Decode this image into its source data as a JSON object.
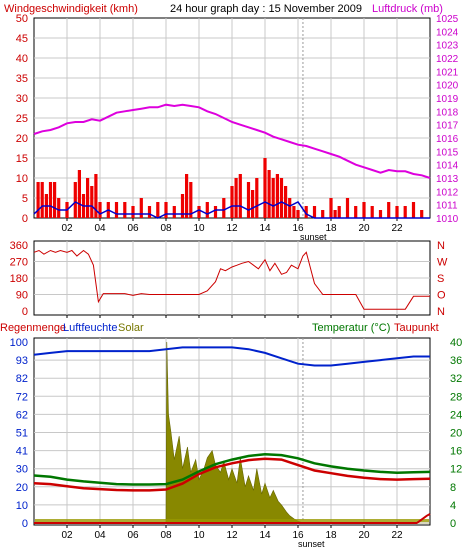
{
  "header": {
    "wind_label": "Windgeschwindigkeit (kmh)",
    "title": "24 hour graph day : 15 November 2009",
    "pressure_label": "Luftdruck (mb)"
  },
  "lower_header": {
    "rain_label": "Regenmenge",
    "humidity_label": "Luftfeuchte",
    "solar_label": "Solar",
    "temp_label": "Temperatur (°C)",
    "dew_label": "Taupunkt"
  },
  "x_ticks": [
    "02",
    "04",
    "06",
    "08",
    "10",
    "12",
    "14",
    "16",
    "18",
    "20",
    "22"
  ],
  "sunset_label": "sunset",
  "colors": {
    "wind": "#cc0000",
    "pressure": "#dd00dd",
    "gust": "#ee0000",
    "wind_avg": "#0000cc",
    "direction": "#cc0000",
    "humidity": "#0022cc",
    "solar": "#888800",
    "temperature": "#007700",
    "dewpoint": "#cc0000",
    "rain": "#cc0000",
    "grid": "#c8c8c8"
  },
  "chart_data": [
    {
      "type": "bar",
      "name": "wind_pressure",
      "title": "24 hour graph day : 15 November 2009",
      "ylabel_left": "Windgeschwindigkeit (kmh)",
      "ylabel_right": "Luftdruck (mb)",
      "ylim_left": [
        0,
        50
      ],
      "ylim_right": [
        1010,
        1025
      ],
      "yticks_left": [
        "0",
        "5",
        "10",
        "15",
        "20",
        "25",
        "30",
        "35",
        "40",
        "45",
        "50"
      ],
      "yticks_right": [
        "1010",
        "1011",
        "1012",
        "1013",
        "1014",
        "1015",
        "1016",
        "1017",
        "1018",
        "1019",
        "1020",
        "1021",
        "1022",
        "1023",
        "1024",
        "1025"
      ],
      "xlim_hours": [
        0,
        24
      ],
      "sunset_hour": 16.3,
      "series": [
        {
          "name": "Luftdruck",
          "kind": "line",
          "axis": "right",
          "x": [
            0,
            0.5,
            1,
            1.5,
            2,
            2.5,
            3,
            3.5,
            4,
            4.5,
            5,
            5.5,
            6,
            6.5,
            7,
            7.5,
            8,
            8.5,
            9,
            9.5,
            10,
            10.5,
            11,
            11.5,
            12,
            12.5,
            13,
            13.5,
            14,
            14.5,
            15,
            15.5,
            16,
            16.5,
            17,
            17.5,
            18,
            18.5,
            19,
            19.5,
            20,
            20.5,
            21,
            21.5,
            22,
            22.5,
            23,
            23.5,
            24
          ],
          "y": [
            1016.3,
            1016.5,
            1016.6,
            1016.8,
            1017.1,
            1017.2,
            1017.2,
            1017.4,
            1017.3,
            1017.6,
            1017.9,
            1018.0,
            1018.1,
            1018.2,
            1018.3,
            1018.3,
            1018.5,
            1018.4,
            1018.5,
            1018.4,
            1018.3,
            1018.0,
            1017.8,
            1017.5,
            1017.2,
            1017.0,
            1016.8,
            1016.6,
            1016.4,
            1016.1,
            1015.9,
            1015.7,
            1015.5,
            1015.4,
            1015.2,
            1015.0,
            1014.8,
            1014.6,
            1014.3,
            1014.0,
            1013.8,
            1013.6,
            1013.4,
            1013.6,
            1013.5,
            1013.5,
            1013.3,
            1013.2,
            1013.0
          ]
        },
        {
          "name": "Böen",
          "kind": "bar",
          "axis": "left",
          "x": [
            0.25,
            0.5,
            0.75,
            1.0,
            1.25,
            1.5,
            2.0,
            2.5,
            2.75,
            3.0,
            3.25,
            3.5,
            3.75,
            4.0,
            4.5,
            5.0,
            5.5,
            6.0,
            6.5,
            7.0,
            7.5,
            8.0,
            8.5,
            9.0,
            9.25,
            9.5,
            10.0,
            10.5,
            11.0,
            11.5,
            12.0,
            12.25,
            12.5,
            13.0,
            13.25,
            13.5,
            14.0,
            14.25,
            14.5,
            14.75,
            15.0,
            15.25,
            15.5,
            15.75,
            16.0,
            16.5,
            17.0,
            17.5,
            18.0,
            18.25,
            18.5,
            19.0,
            19.5,
            20.0,
            20.5,
            21.0,
            21.5,
            22.0,
            22.5,
            23.0,
            23.5
          ],
          "y": [
            9,
            9,
            6,
            9,
            9,
            5,
            4,
            9,
            12,
            6,
            10,
            8,
            11,
            4,
            4,
            4,
            4,
            3,
            5,
            3,
            4,
            4,
            3,
            6,
            11,
            9,
            3,
            4,
            3,
            5,
            8,
            10,
            11,
            9,
            7,
            10,
            15,
            12,
            10,
            11,
            10,
            8,
            5,
            3,
            2,
            3,
            3,
            2,
            5,
            2,
            3,
            5,
            3,
            4,
            3,
            2,
            4,
            3,
            3,
            4,
            2
          ]
        },
        {
          "name": "Windgeschwindigkeit",
          "kind": "line",
          "axis": "left",
          "x": [
            0,
            0.5,
            1,
            1.5,
            2,
            2.5,
            3,
            3.5,
            4,
            4.5,
            5,
            5.5,
            6,
            6.5,
            7,
            7.5,
            8,
            8.5,
            9,
            9.5,
            10,
            10.5,
            11,
            11.5,
            12,
            12.5,
            13,
            13.5,
            14,
            14.5,
            15,
            15.5,
            16,
            16.5,
            17,
            17.5,
            18,
            18.5,
            19,
            19.5,
            20,
            20.5,
            21,
            21.5,
            22,
            22.5,
            23,
            23.5,
            24
          ],
          "y": [
            1,
            3,
            3,
            2,
            2,
            4,
            3,
            3,
            1,
            2,
            1,
            1,
            1,
            1,
            1,
            0,
            1,
            1,
            1,
            1,
            2,
            1,
            2,
            2,
            3,
            3,
            2,
            3,
            4,
            3,
            4,
            3,
            4,
            1,
            0,
            0,
            0,
            0,
            0,
            0,
            0,
            0,
            0,
            0,
            0,
            0,
            0,
            0,
            0
          ]
        }
      ]
    },
    {
      "type": "line",
      "name": "wind_direction",
      "ylim": [
        0,
        360
      ],
      "yticks_left": [
        "0",
        "90",
        "180",
        "270",
        "360"
      ],
      "yticks_right": [
        "N",
        "O",
        "S",
        "W",
        "N"
      ],
      "xlim_hours": [
        0,
        24
      ],
      "series": [
        {
          "name": "Windrichtung",
          "x": [
            0,
            0.3,
            0.6,
            1,
            1.3,
            1.6,
            2,
            2.3,
            2.6,
            3,
            3.3,
            3.6,
            3.9,
            4.2,
            4.5,
            5,
            5.5,
            6,
            6.5,
            7,
            7.5,
            8,
            8.5,
            9,
            9.5,
            10,
            10.5,
            11,
            11.3,
            11.6,
            12,
            12.3,
            12.6,
            13,
            13.3,
            13.6,
            14,
            14.3,
            14.6,
            15,
            15.3,
            15.6,
            16,
            16.3,
            16.5,
            17,
            17.5,
            18,
            18.5,
            19,
            19.5,
            20,
            21,
            22,
            22.5,
            23,
            24
          ],
          "y": [
            320,
            330,
            310,
            330,
            320,
            330,
            320,
            330,
            300,
            330,
            310,
            250,
            50,
            95,
            95,
            95,
            95,
            85,
            95,
            90,
            90,
            90,
            90,
            90,
            90,
            90,
            110,
            160,
            230,
            220,
            240,
            250,
            260,
            270,
            250,
            230,
            280,
            220,
            260,
            200,
            210,
            250,
            230,
            300,
            320,
            150,
            90,
            90,
            90,
            90,
            90,
            10,
            10,
            10,
            10,
            80,
            80
          ]
        }
      ]
    },
    {
      "type": "area",
      "name": "temperature_humidity",
      "ylabel_left": "Luftfeuchte",
      "ylabel_right": "Temperatur (°C)",
      "ylim_left": [
        0,
        100
      ],
      "ylim_right": [
        0,
        40
      ],
      "yticks_left": [
        "0",
        "10",
        "20",
        "30",
        "41",
        "51",
        "62",
        "72",
        "82",
        "93",
        "100"
      ],
      "yticks_right": [
        "0",
        "4",
        "8",
        "12",
        "16",
        "20",
        "24",
        "28",
        "32",
        "36",
        "40"
      ],
      "xlim_hours": [
        0,
        24
      ],
      "sunset_hour": 16.3,
      "series": [
        {
          "name": "Luftfeuchte",
          "axis": "left",
          "x": [
            0,
            1,
            2,
            3,
            4,
            5,
            6,
            7,
            8,
            9,
            10,
            11,
            12,
            13,
            14,
            15,
            16,
            17,
            18,
            19,
            20,
            21,
            22,
            23,
            24
          ],
          "y": [
            93,
            94,
            95,
            95,
            95,
            95,
            95,
            95,
            96,
            97,
            97,
            97,
            97,
            96,
            94,
            91,
            88,
            87,
            87,
            88,
            89,
            90,
            91,
            92,
            92
          ]
        },
        {
          "name": "Temperatur",
          "axis": "right",
          "x": [
            0,
            1,
            2,
            3,
            4,
            5,
            6,
            7,
            8,
            9,
            10,
            11,
            12,
            13,
            14,
            15,
            16,
            17,
            18,
            19,
            20,
            21,
            22,
            23,
            24
          ],
          "y": [
            10.5,
            10.2,
            9.6,
            9.2,
            8.9,
            8.6,
            8.5,
            8.5,
            8.6,
            9.6,
            11.4,
            13.0,
            14.0,
            14.8,
            15.2,
            15.0,
            14.3,
            13.2,
            12.5,
            12.0,
            11.6,
            11.3,
            11.1,
            11.2,
            11.3
          ]
        },
        {
          "name": "Taupunkt",
          "axis": "right",
          "x": [
            0,
            1,
            2,
            3,
            4,
            5,
            6,
            7,
            8,
            9,
            10,
            11,
            12,
            13,
            14,
            15,
            16,
            17,
            18,
            19,
            20,
            21,
            22,
            23,
            24
          ],
          "y": [
            8.8,
            8.6,
            8.1,
            7.7,
            7.5,
            7.3,
            7.2,
            7.2,
            7.4,
            8.7,
            10.8,
            12.3,
            13.2,
            13.9,
            14.2,
            14.0,
            12.8,
            11.6,
            11.0,
            10.4,
            10.0,
            9.7,
            9.6,
            9.7,
            9.8
          ]
        },
        {
          "name": "Solar",
          "axis": "left",
          "x": [
            0,
            8.0,
            8.05,
            8.15,
            8.3,
            8.5,
            8.8,
            9.0,
            9.3,
            9.5,
            9.8,
            10.0,
            10.3,
            10.5,
            10.8,
            11.0,
            11.3,
            11.5,
            11.8,
            12.0,
            12.3,
            12.5,
            12.8,
            13.0,
            13.3,
            13.5,
            13.8,
            14.0,
            14.3,
            14.5,
            14.8,
            15.0,
            15.3,
            15.5,
            15.8,
            16.0,
            16.3,
            24
          ],
          "y": [
            0,
            0,
            100,
            60,
            50,
            35,
            48,
            30,
            42,
            28,
            35,
            24,
            30,
            36,
            40,
            32,
            28,
            34,
            24,
            30,
            22,
            36,
            20,
            26,
            18,
            30,
            16,
            22,
            14,
            18,
            12,
            10,
            6,
            4,
            2,
            1,
            0,
            0
          ]
        },
        {
          "name": "Regenmenge",
          "axis": "left",
          "x": [
            0,
            23.2,
            23.5,
            23.8,
            24
          ],
          "y": [
            0,
            0,
            2,
            4,
            5
          ]
        }
      ]
    }
  ]
}
